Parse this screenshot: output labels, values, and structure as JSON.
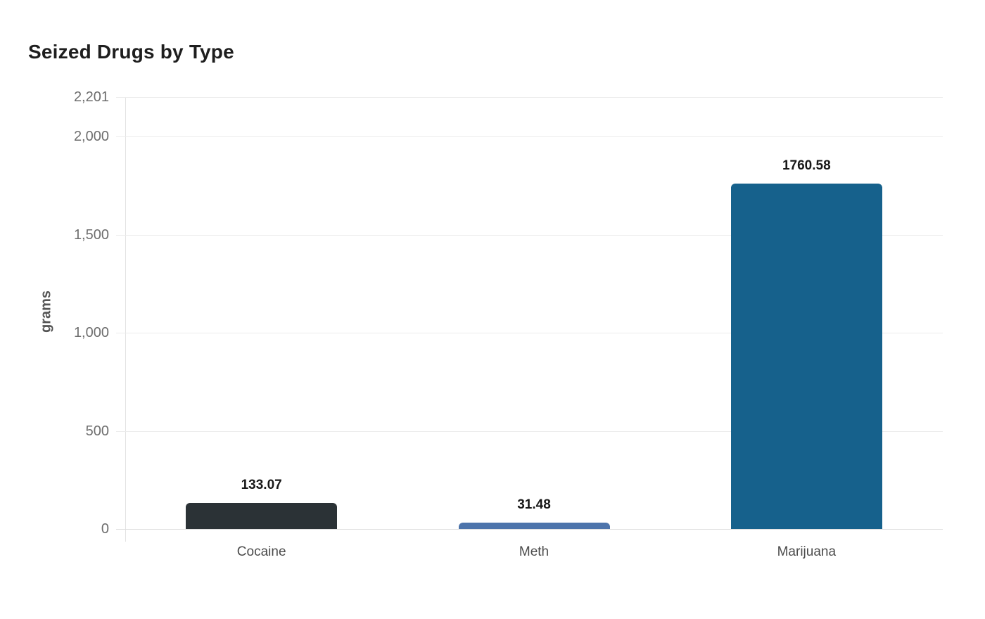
{
  "chart_data": {
    "type": "bar",
    "title": "Seized Drugs by Type",
    "xlabel": "",
    "ylabel": "grams",
    "categories": [
      "Cocaine",
      "Meth",
      "Marijuana"
    ],
    "values": [
      133.07,
      31.48,
      1760.58
    ],
    "value_labels": [
      "133.07",
      "31.48",
      "1760.58"
    ],
    "bar_colors": [
      "#2b3236",
      "#4d74ab",
      "#16618c"
    ],
    "ylim": [
      0,
      2201
    ],
    "yticks": [
      {
        "value": 0,
        "label": "0"
      },
      {
        "value": 500,
        "label": "500"
      },
      {
        "value": 1000,
        "label": "1,000"
      },
      {
        "value": 1500,
        "label": "1,500"
      },
      {
        "value": 2000,
        "label": "2,000"
      },
      {
        "value": 2201,
        "label": "2,201"
      }
    ],
    "grid": true,
    "legend": false,
    "background": "#ffffff"
  }
}
